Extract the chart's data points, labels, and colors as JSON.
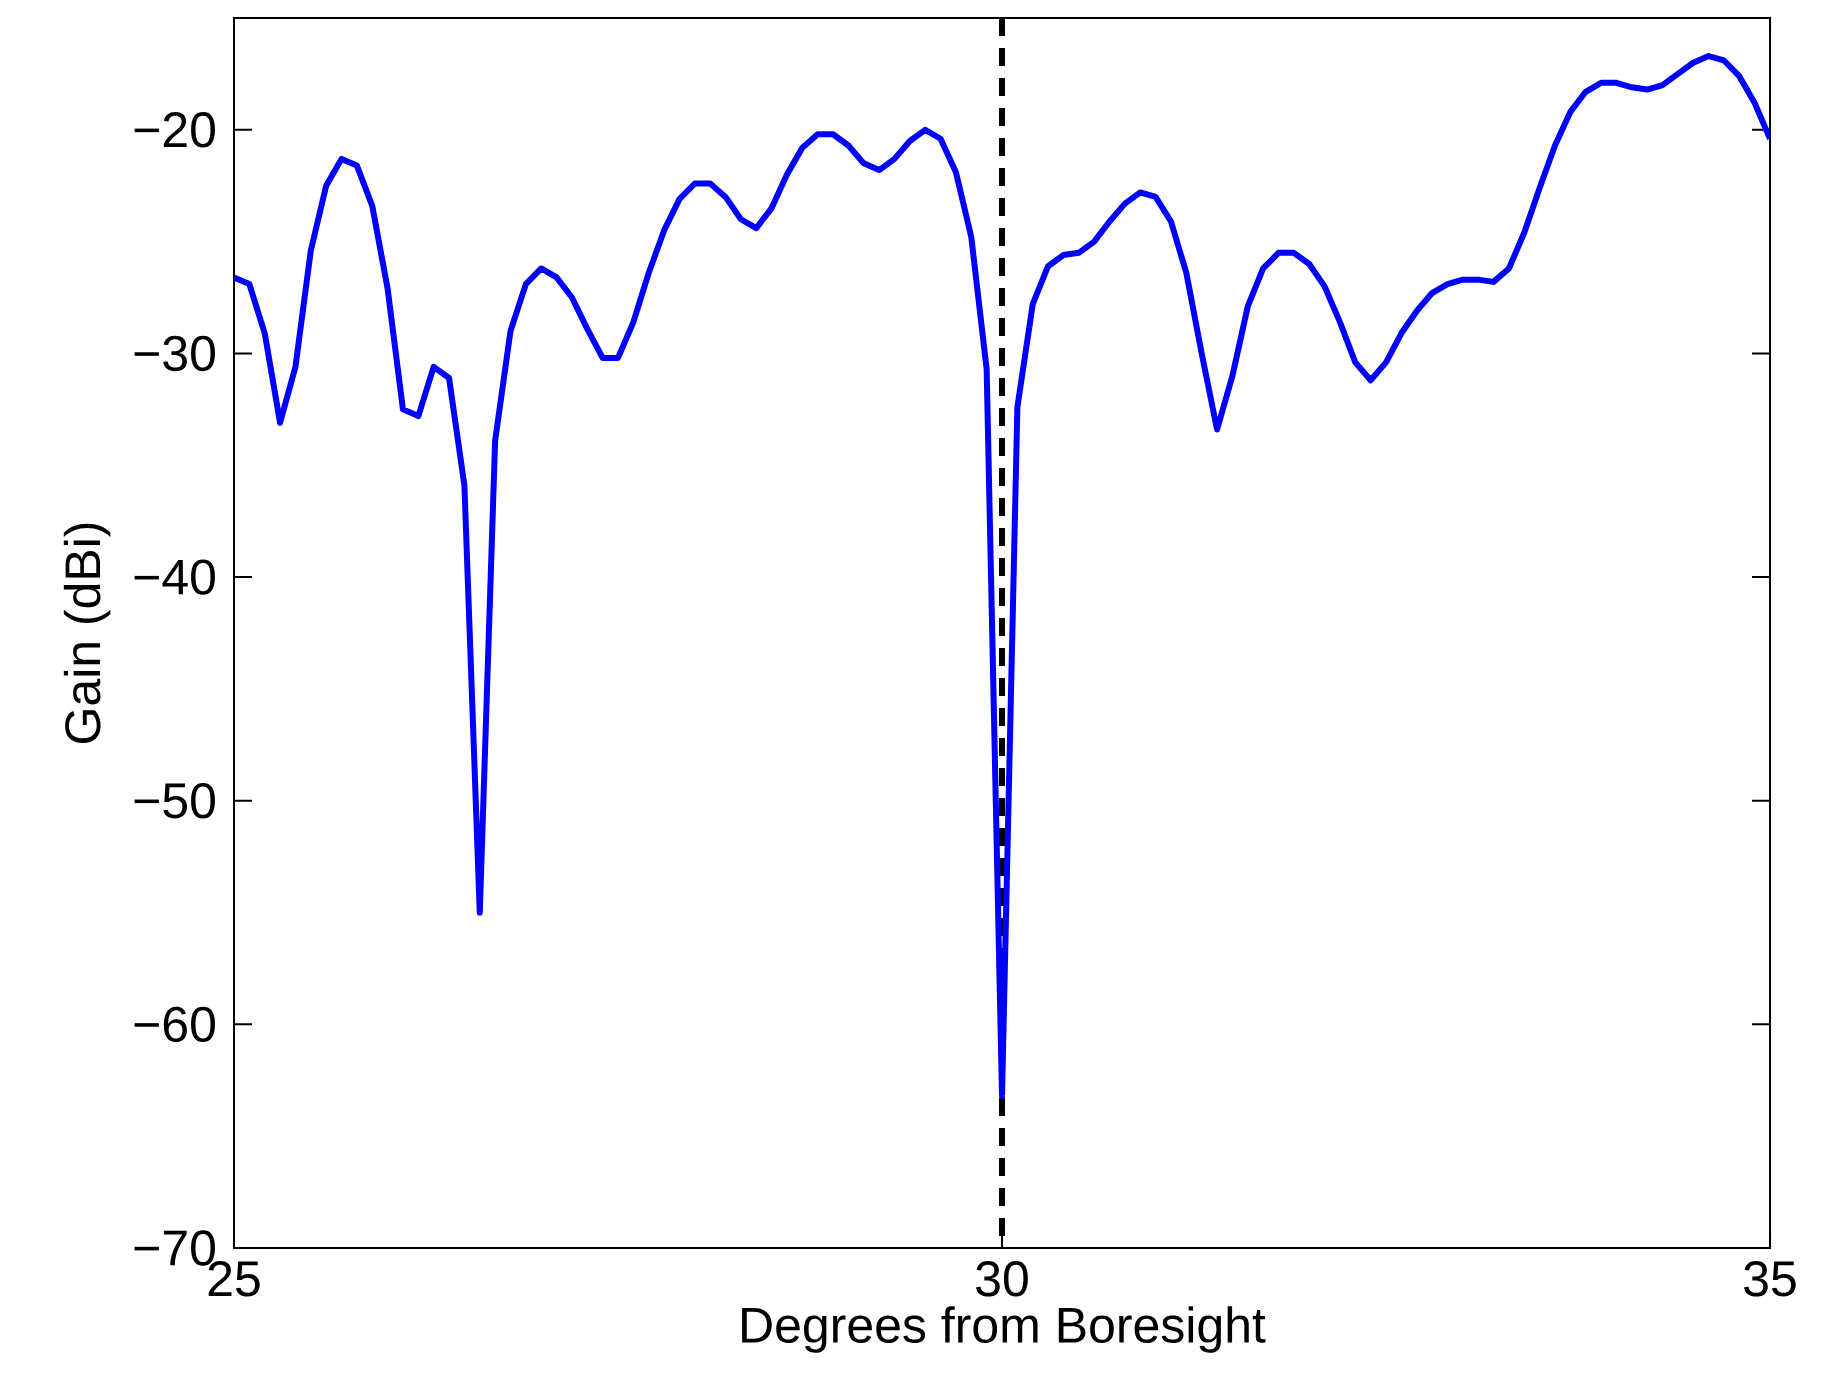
{
  "chart_data": {
    "type": "line",
    "xlabel": "Degrees from Boresight",
    "ylabel": "Gain (dBi)",
    "xlim": [
      25,
      35
    ],
    "ylim": [
      -70,
      -15
    ],
    "xticks": [
      25,
      30,
      35
    ],
    "yticks": [
      {
        "value": -70,
        "label": "−70"
      },
      {
        "value": -60,
        "label": "−60"
      },
      {
        "value": -50,
        "label": "−50"
      },
      {
        "value": -40,
        "label": "−40"
      },
      {
        "value": -30,
        "label": "−30"
      },
      {
        "value": -20,
        "label": "−20"
      }
    ],
    "series": [
      {
        "color": "#0000ff",
        "x": [
          25.0,
          25.1,
          25.2,
          25.3,
          25.4,
          25.5,
          25.6,
          25.7,
          25.8,
          25.9,
          26.0,
          26.1,
          26.2,
          26.3,
          26.4,
          26.5,
          26.6,
          26.7,
          26.8,
          26.9,
          27.0,
          27.1,
          27.2,
          27.3,
          27.4,
          27.5,
          27.6,
          27.7,
          27.8,
          27.9,
          28.0,
          28.1,
          28.2,
          28.3,
          28.4,
          28.5,
          28.6,
          28.7,
          28.8,
          28.9,
          29.0,
          29.1,
          29.2,
          29.3,
          29.4,
          29.5,
          29.6,
          29.7,
          29.8,
          29.9,
          30.0,
          30.1,
          30.2,
          30.3,
          30.4,
          30.5,
          30.6,
          30.7,
          30.8,
          30.9,
          31.0,
          31.1,
          31.2,
          31.3,
          31.4,
          31.5,
          31.6,
          31.7,
          31.8,
          31.9,
          32.0,
          32.1,
          32.2,
          32.3,
          32.4,
          32.5,
          32.6,
          32.7,
          32.8,
          32.9,
          33.0,
          33.1,
          33.2,
          33.3,
          33.4,
          33.5,
          33.6,
          33.7,
          33.8,
          33.9,
          34.0,
          34.1,
          34.2,
          34.3,
          34.4,
          34.5,
          34.6,
          34.7,
          34.8,
          34.9,
          35.0
        ],
        "values": [
          -26.6,
          -26.9,
          -29.1,
          -33.1,
          -30.6,
          -25.4,
          -22.5,
          -21.3,
          -21.6,
          -23.4,
          -27.1,
          -32.5,
          -32.8,
          -30.6,
          -31.1,
          -35.9,
          -55.0,
          -33.9,
          -29.0,
          -26.9,
          -26.2,
          -26.6,
          -27.5,
          -28.9,
          -30.2,
          -30.2,
          -28.6,
          -26.4,
          -24.5,
          -23.1,
          -22.4,
          -22.4,
          -23.0,
          -24.0,
          -24.4,
          -23.5,
          -22.0,
          -20.8,
          -20.2,
          -20.2,
          -20.7,
          -21.5,
          -21.8,
          -21.3,
          -20.5,
          -20.0,
          -20.4,
          -21.9,
          -24.8,
          -30.7,
          -63.2,
          -32.4,
          -27.8,
          -26.1,
          -25.6,
          -25.5,
          -25.0,
          -24.1,
          -23.3,
          -22.8,
          -23.0,
          -24.1,
          -26.4,
          -30.0,
          -33.4,
          -31.0,
          -27.9,
          -26.2,
          -25.5,
          -25.5,
          -26.0,
          -27.0,
          -28.6,
          -30.4,
          -31.2,
          -30.4,
          -29.1,
          -28.1,
          -27.3,
          -26.9,
          -26.7,
          -26.7,
          -26.8,
          -26.2,
          -24.6,
          -22.6,
          -20.7,
          -19.2,
          -18.3,
          -17.9,
          -17.9,
          -18.1,
          -18.2,
          -18.0,
          -17.5,
          -17.0,
          -16.7,
          -16.9,
          -17.6,
          -18.8,
          -20.4
        ]
      }
    ],
    "ref_lines": [
      {
        "axis": "x",
        "value": 30,
        "color": "#000000",
        "line_style": "dashed"
      }
    ]
  }
}
